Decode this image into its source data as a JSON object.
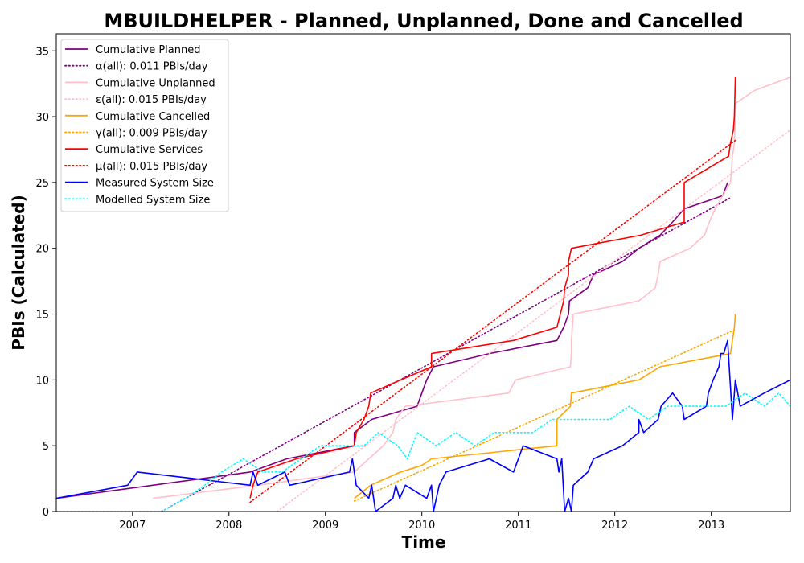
{
  "chart_data": {
    "type": "line",
    "title": "MBUILDHELPER - Planned, Unplanned, Done  and Cancelled",
    "xlabel": "Time",
    "ylabel": "PBIs (Calculated)",
    "xlim": [
      2006.21,
      2013.82
    ],
    "ylim": [
      0,
      36.3
    ],
    "xticks": [
      2007,
      2008,
      2009,
      2010,
      2011,
      2012,
      2013
    ],
    "yticks": [
      0,
      5,
      10,
      15,
      20,
      25,
      30,
      35
    ],
    "grid": false,
    "legend_position": "top-left",
    "series": [
      {
        "name": "Cumulative Planned",
        "color": "#800080",
        "style": "solid",
        "points": [
          [
            2006.21,
            1
          ],
          [
            2008.22,
            3
          ],
          [
            2008.6,
            4
          ],
          [
            2009.3,
            5
          ],
          [
            2009.3,
            6
          ],
          [
            2009.48,
            7
          ],
          [
            2009.95,
            8
          ],
          [
            2010.0,
            9
          ],
          [
            2010.05,
            10
          ],
          [
            2010.12,
            11
          ],
          [
            2010.7,
            12
          ],
          [
            2011.4,
            13
          ],
          [
            2011.47,
            14
          ],
          [
            2011.52,
            15
          ],
          [
            2011.53,
            16
          ],
          [
            2011.72,
            17
          ],
          [
            2011.78,
            18
          ],
          [
            2012.08,
            19
          ],
          [
            2012.25,
            20
          ],
          [
            2012.47,
            21
          ],
          [
            2012.6,
            22
          ],
          [
            2012.72,
            23
          ],
          [
            2013.12,
            24
          ],
          [
            2013.17,
            25
          ]
        ]
      },
      {
        "name": "α(all): 0.011 PBIs/day",
        "color": "#800080",
        "style": "dotted",
        "points": [
          [
            2007.3,
            0
          ],
          [
            2013.19,
            23.8
          ]
        ]
      },
      {
        "name": "Cumulative Unplanned",
        "color": "#ffc0cb",
        "style": "solid",
        "points": [
          [
            2007.21,
            1
          ],
          [
            2008.3,
            2
          ],
          [
            2009.3,
            3
          ],
          [
            2009.6,
            5
          ],
          [
            2009.7,
            6
          ],
          [
            2009.73,
            7
          ],
          [
            2009.83,
            8
          ],
          [
            2010.9,
            9
          ],
          [
            2010.97,
            10
          ],
          [
            2011.54,
            11
          ],
          [
            2011.55,
            12
          ],
          [
            2011.55,
            13
          ],
          [
            2011.56,
            14
          ],
          [
            2011.57,
            15
          ],
          [
            2012.25,
            16
          ],
          [
            2012.42,
            17
          ],
          [
            2012.45,
            18
          ],
          [
            2012.47,
            19
          ],
          [
            2012.78,
            20
          ],
          [
            2012.93,
            21
          ],
          [
            2012.98,
            22
          ],
          [
            2013.04,
            23
          ],
          [
            2013.2,
            25
          ],
          [
            2013.22,
            27
          ],
          [
            2013.24,
            28
          ],
          [
            2013.25,
            30
          ],
          [
            2013.25,
            31
          ],
          [
            2013.45,
            32
          ],
          [
            2013.82,
            33
          ]
        ]
      },
      {
        "name": "ε(all): 0.015 PBIs/day",
        "color": "#ffc0cb",
        "style": "dotted",
        "points": [
          [
            2008.5,
            0
          ],
          [
            2013.82,
            29
          ]
        ]
      },
      {
        "name": "Cumulative Cancelled",
        "color": "#ffa500",
        "style": "solid",
        "points": [
          [
            2009.3,
            1
          ],
          [
            2009.47,
            2
          ],
          [
            2009.78,
            3
          ],
          [
            2010.0,
            3.5
          ],
          [
            2010.1,
            4
          ],
          [
            2011.4,
            5
          ],
          [
            2011.4,
            7
          ],
          [
            2011.54,
            8
          ],
          [
            2011.55,
            9
          ],
          [
            2012.25,
            10
          ],
          [
            2012.47,
            11
          ],
          [
            2013.2,
            12
          ],
          [
            2013.24,
            14
          ],
          [
            2013.25,
            15
          ]
        ]
      },
      {
        "name": "γ(all): 0.009 PBIs/day",
        "color": "#ffa500",
        "style": "dotted",
        "points": [
          [
            2009.3,
            0.8
          ],
          [
            2013.24,
            13.8
          ]
        ]
      },
      {
        "name": "Cumulative Services",
        "color": "#ff0000",
        "style": "solid",
        "points": [
          [
            2008.22,
            1
          ],
          [
            2008.25,
            2
          ],
          [
            2008.3,
            3
          ],
          [
            2008.7,
            4
          ],
          [
            2009.3,
            5
          ],
          [
            2009.32,
            6
          ],
          [
            2009.4,
            7
          ],
          [
            2009.45,
            8
          ],
          [
            2009.47,
            9
          ],
          [
            2009.78,
            10
          ],
          [
            2010.1,
            11
          ],
          [
            2010.1,
            12
          ],
          [
            2010.95,
            13
          ],
          [
            2011.4,
            14
          ],
          [
            2011.47,
            16
          ],
          [
            2011.48,
            17
          ],
          [
            2011.52,
            18
          ],
          [
            2011.52,
            19
          ],
          [
            2011.55,
            20
          ],
          [
            2012.27,
            21
          ],
          [
            2012.72,
            22
          ],
          [
            2012.72,
            25
          ],
          [
            2013.18,
            27
          ],
          [
            2013.2,
            28
          ],
          [
            2013.23,
            29
          ],
          [
            2013.24,
            30
          ],
          [
            2013.25,
            33
          ]
        ]
      },
      {
        "name": "μ(all): 0.015 PBIs/day",
        "color": "#ff0000",
        "style": "dotted",
        "points": [
          [
            2008.22,
            0.7
          ],
          [
            2013.25,
            28.2
          ]
        ]
      },
      {
        "name": "Measured System Size",
        "color": "#0000ff",
        "style": "solid",
        "points": [
          [
            2006.21,
            1
          ],
          [
            2006.95,
            2
          ],
          [
            2007.05,
            3
          ],
          [
            2008.22,
            2
          ],
          [
            2008.25,
            3
          ],
          [
            2008.3,
            2
          ],
          [
            2008.58,
            3
          ],
          [
            2008.63,
            2
          ],
          [
            2009.25,
            3
          ],
          [
            2009.28,
            4
          ],
          [
            2009.32,
            2
          ],
          [
            2009.45,
            1
          ],
          [
            2009.48,
            2
          ],
          [
            2009.52,
            0
          ],
          [
            2009.7,
            1
          ],
          [
            2009.73,
            2
          ],
          [
            2009.77,
            1
          ],
          [
            2009.83,
            2
          ],
          [
            2010.05,
            1
          ],
          [
            2010.1,
            2
          ],
          [
            2010.12,
            0
          ],
          [
            2010.18,
            2
          ],
          [
            2010.25,
            3
          ],
          [
            2010.7,
            4
          ],
          [
            2010.95,
            3
          ],
          [
            2011.0,
            4
          ],
          [
            2011.05,
            5
          ],
          [
            2011.4,
            4
          ],
          [
            2011.42,
            3
          ],
          [
            2011.45,
            4
          ],
          [
            2011.48,
            0
          ],
          [
            2011.52,
            1
          ],
          [
            2011.55,
            0
          ],
          [
            2011.57,
            2
          ],
          [
            2011.72,
            3
          ],
          [
            2011.78,
            4
          ],
          [
            2012.08,
            5
          ],
          [
            2012.25,
            6
          ],
          [
            2012.25,
            7
          ],
          [
            2012.3,
            6
          ],
          [
            2012.45,
            7
          ],
          [
            2012.48,
            8
          ],
          [
            2012.6,
            9
          ],
          [
            2012.7,
            8
          ],
          [
            2012.72,
            7
          ],
          [
            2012.95,
            8
          ],
          [
            2012.97,
            9
          ],
          [
            2013.02,
            10
          ],
          [
            2013.08,
            11
          ],
          [
            2013.1,
            12
          ],
          [
            2013.13,
            12
          ],
          [
            2013.17,
            13
          ],
          [
            2013.22,
            7
          ],
          [
            2013.25,
            10
          ],
          [
            2013.3,
            8
          ],
          [
            2013.55,
            9
          ],
          [
            2013.82,
            10
          ]
        ]
      },
      {
        "name": "Modelled System Size",
        "color": "#00ffff",
        "style": "dotted",
        "points": [
          [
            2006.21,
            0
          ],
          [
            2007.3,
            0
          ],
          [
            2007.55,
            1
          ],
          [
            2007.75,
            2
          ],
          [
            2007.92,
            3
          ],
          [
            2008.15,
            4
          ],
          [
            2008.35,
            3
          ],
          [
            2008.55,
            3
          ],
          [
            2008.75,
            4
          ],
          [
            2008.95,
            5
          ],
          [
            2009.15,
            5
          ],
          [
            2009.4,
            5
          ],
          [
            2009.55,
            6
          ],
          [
            2009.75,
            5
          ],
          [
            2009.85,
            4
          ],
          [
            2009.95,
            6
          ],
          [
            2010.15,
            5
          ],
          [
            2010.35,
            6
          ],
          [
            2010.55,
            5
          ],
          [
            2010.75,
            6
          ],
          [
            2010.95,
            6
          ],
          [
            2011.15,
            6
          ],
          [
            2011.35,
            7
          ],
          [
            2011.55,
            7
          ],
          [
            2011.75,
            7
          ],
          [
            2011.95,
            7
          ],
          [
            2012.15,
            8
          ],
          [
            2012.35,
            7
          ],
          [
            2012.55,
            8
          ],
          [
            2012.75,
            8
          ],
          [
            2012.95,
            8
          ],
          [
            2013.15,
            8
          ],
          [
            2013.35,
            9
          ],
          [
            2013.55,
            8
          ],
          [
            2013.7,
            9
          ],
          [
            2013.82,
            8
          ]
        ]
      }
    ]
  }
}
